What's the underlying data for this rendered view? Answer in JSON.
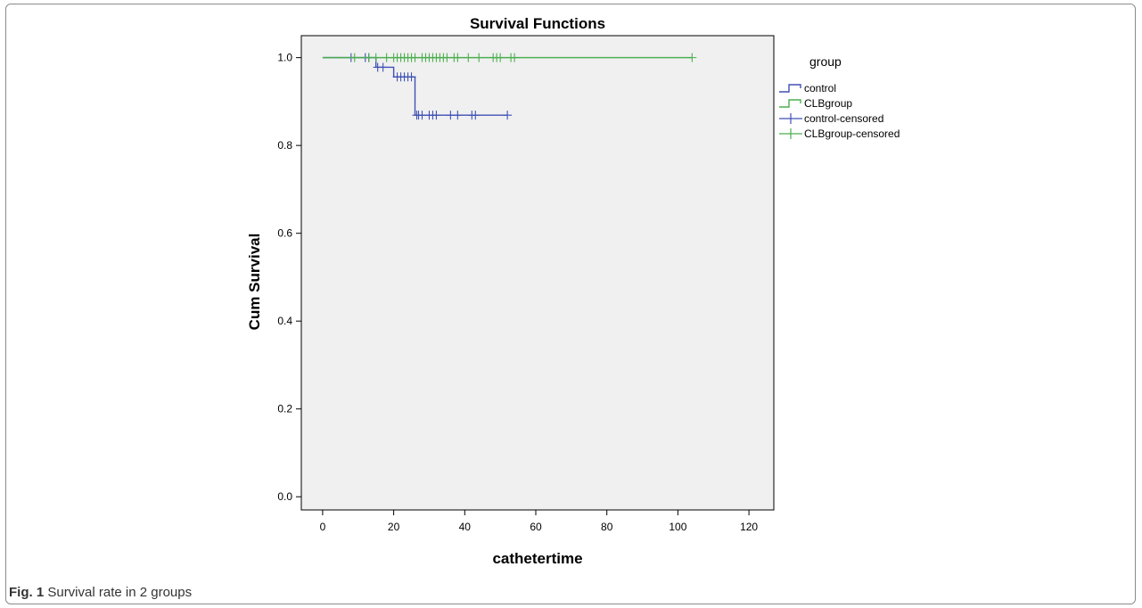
{
  "caption": {
    "label": "Fig. 1",
    "text": "Survival rate in 2 groups"
  },
  "chart_data": {
    "type": "line",
    "title": "Survival Functions",
    "xlabel": "cathetertime",
    "ylabel": "Cum Survival",
    "xlim": [
      -6,
      127
    ],
    "ylim": [
      -0.03,
      1.05
    ],
    "xticks": [
      0,
      20,
      40,
      60,
      80,
      100,
      120
    ],
    "yticks": [
      0.0,
      0.2,
      0.4,
      0.6,
      0.8,
      1.0
    ],
    "ytick_labels": [
      "0.0",
      "0.2",
      "0.4",
      "0.6",
      "0.8",
      "1.0"
    ],
    "grid": false,
    "legend_title": "group",
    "legend_position": "right",
    "legend": [
      {
        "label": "control",
        "kind": "step",
        "color": "#3F51B5"
      },
      {
        "label": "CLBgroup",
        "kind": "step",
        "color": "#4CAF50"
      },
      {
        "label": "control-censored",
        "kind": "censor",
        "color": "#3F51B5"
      },
      {
        "label": "CLBgroup-censored",
        "kind": "censor",
        "color": "#4CAF50"
      }
    ],
    "series": [
      {
        "name": "control",
        "color": "#3F51B5",
        "x": [
          0,
          15,
          20,
          26,
          52
        ],
        "y": [
          1.0,
          0.978,
          0.956,
          0.869,
          0.869
        ],
        "censored": [
          {
            "x": 8,
            "y": 1.0
          },
          {
            "x": 12,
            "y": 1.0
          },
          {
            "x": 13,
            "y": 1.0
          },
          {
            "x": 15.5,
            "y": 0.978
          },
          {
            "x": 17,
            "y": 0.978
          },
          {
            "x": 21,
            "y": 0.956
          },
          {
            "x": 22,
            "y": 0.956
          },
          {
            "x": 23,
            "y": 0.956
          },
          {
            "x": 24,
            "y": 0.956
          },
          {
            "x": 25,
            "y": 0.956
          },
          {
            "x": 26.5,
            "y": 0.869
          },
          {
            "x": 27,
            "y": 0.869
          },
          {
            "x": 28,
            "y": 0.869
          },
          {
            "x": 30,
            "y": 0.869
          },
          {
            "x": 31,
            "y": 0.869
          },
          {
            "x": 32,
            "y": 0.869
          },
          {
            "x": 36,
            "y": 0.869
          },
          {
            "x": 38,
            "y": 0.869
          },
          {
            "x": 42,
            "y": 0.869
          },
          {
            "x": 43,
            "y": 0.869
          },
          {
            "x": 52,
            "y": 0.869
          }
        ]
      },
      {
        "name": "CLBgroup",
        "color": "#4CAF50",
        "x": [
          0,
          104
        ],
        "y": [
          1.0,
          1.0
        ],
        "censored": [
          {
            "x": 9,
            "y": 1.0
          },
          {
            "x": 13,
            "y": 1.0
          },
          {
            "x": 15,
            "y": 1.0
          },
          {
            "x": 18,
            "y": 1.0
          },
          {
            "x": 20,
            "y": 1.0
          },
          {
            "x": 21,
            "y": 1.0
          },
          {
            "x": 22,
            "y": 1.0
          },
          {
            "x": 23,
            "y": 1.0
          },
          {
            "x": 24,
            "y": 1.0
          },
          {
            "x": 25,
            "y": 1.0
          },
          {
            "x": 26,
            "y": 1.0
          },
          {
            "x": 28,
            "y": 1.0
          },
          {
            "x": 29,
            "y": 1.0
          },
          {
            "x": 30,
            "y": 1.0
          },
          {
            "x": 31,
            "y": 1.0
          },
          {
            "x": 32,
            "y": 1.0
          },
          {
            "x": 33,
            "y": 1.0
          },
          {
            "x": 34,
            "y": 1.0
          },
          {
            "x": 35,
            "y": 1.0
          },
          {
            "x": 37,
            "y": 1.0
          },
          {
            "x": 38,
            "y": 1.0
          },
          {
            "x": 41,
            "y": 1.0
          },
          {
            "x": 44,
            "y": 1.0
          },
          {
            "x": 48,
            "y": 1.0
          },
          {
            "x": 49,
            "y": 1.0
          },
          {
            "x": 50,
            "y": 1.0
          },
          {
            "x": 53,
            "y": 1.0
          },
          {
            "x": 54,
            "y": 1.0
          },
          {
            "x": 104,
            "y": 1.0
          }
        ]
      }
    ]
  }
}
